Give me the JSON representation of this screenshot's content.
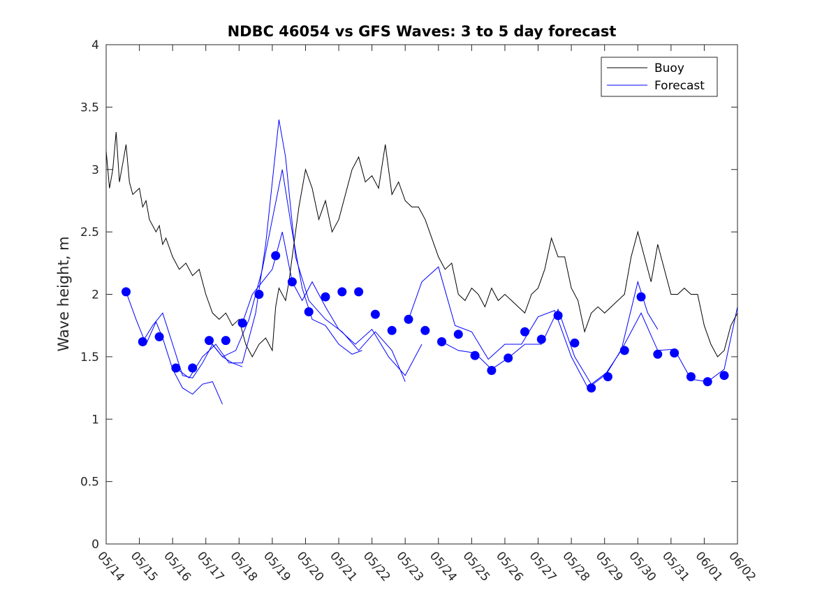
{
  "chart_data": {
    "type": "line",
    "title": "NDBC 46054 vs GFS Waves: 3 to 5 day forecast",
    "xlabel": "",
    "ylabel": "Wave height, m",
    "ylim": [
      0,
      4
    ],
    "yticks": [
      "0",
      "0.5",
      "1",
      "1.5",
      "2",
      "2.5",
      "3",
      "3.5",
      "4"
    ],
    "xlim": [
      0,
      19
    ],
    "xtick_labels": [
      "05/14",
      "05/15",
      "05/16",
      "05/17",
      "05/18",
      "05/19",
      "05/20",
      "05/21",
      "05/22",
      "05/23",
      "05/24",
      "05/25",
      "05/26",
      "05/27",
      "05/28",
      "05/29",
      "05/30",
      "05/31",
      "06/01",
      "06/02"
    ],
    "grid": false,
    "legend_position": "top-right",
    "colors": {
      "buoy": "#000000",
      "forecast": "#0000ff",
      "axes": "#262626"
    },
    "legend": [
      {
        "label": "Buoy",
        "color": "#000000"
      },
      {
        "label": "Forecast",
        "color": "#0000ff"
      }
    ],
    "series": [
      {
        "name": "Buoy",
        "x": [
          0,
          0.1,
          0.2,
          0.3,
          0.4,
          0.5,
          0.6,
          0.7,
          0.8,
          1.0,
          1.1,
          1.2,
          1.3,
          1.5,
          1.6,
          1.7,
          1.8,
          2.0,
          2.2,
          2.4,
          2.6,
          2.8,
          3.0,
          3.2,
          3.4,
          3.6,
          3.8,
          4.0,
          4.2,
          4.4,
          4.6,
          4.8,
          5.0,
          5.1,
          5.2,
          5.3,
          5.4,
          5.5,
          5.6,
          5.8,
          6.0,
          6.2,
          6.4,
          6.6,
          6.8,
          7.0,
          7.2,
          7.4,
          7.6,
          7.8,
          8.0,
          8.2,
          8.4,
          8.6,
          8.8,
          9.0,
          9.2,
          9.4,
          9.6,
          9.8,
          10.0,
          10.2,
          10.4,
          10.6,
          10.8,
          11.0,
          11.2,
          11.4,
          11.6,
          11.8,
          12.0,
          12.2,
          12.4,
          12.6,
          12.8,
          13.0,
          13.2,
          13.4,
          13.6,
          13.8,
          14.0,
          14.2,
          14.4,
          14.6,
          14.8,
          15.0,
          15.2,
          15.4,
          15.6,
          15.8,
          16.0,
          16.2,
          16.4,
          16.6,
          16.8,
          17.0,
          17.2,
          17.4,
          17.6,
          17.8,
          18.0,
          18.2,
          18.4,
          18.6,
          18.8,
          19.0
        ],
        "values": [
          3.15,
          2.85,
          3.0,
          3.3,
          2.9,
          3.05,
          3.2,
          2.9,
          2.8,
          2.85,
          2.7,
          2.75,
          2.6,
          2.5,
          2.55,
          2.4,
          2.45,
          2.3,
          2.2,
          2.25,
          2.15,
          2.2,
          2.0,
          1.85,
          1.8,
          1.85,
          1.75,
          1.8,
          1.6,
          1.5,
          1.6,
          1.65,
          1.55,
          1.9,
          2.05,
          2.0,
          1.95,
          2.1,
          2.3,
          2.7,
          3.0,
          2.85,
          2.6,
          2.75,
          2.5,
          2.6,
          2.8,
          3.0,
          3.1,
          2.9,
          2.95,
          2.85,
          3.2,
          2.8,
          2.9,
          2.75,
          2.7,
          2.7,
          2.6,
          2.45,
          2.3,
          2.2,
          2.25,
          2.0,
          1.95,
          2.05,
          2.0,
          1.9,
          2.05,
          1.95,
          2.0,
          1.95,
          1.9,
          1.85,
          2.0,
          2.05,
          2.2,
          2.45,
          2.3,
          2.3,
          2.05,
          1.95,
          1.7,
          1.85,
          1.9,
          1.85,
          1.9,
          1.95,
          2.0,
          2.3,
          2.5,
          2.3,
          2.1,
          2.4,
          2.2,
          2.0,
          2.0,
          2.05,
          2.0,
          2.0,
          1.75,
          1.6,
          1.5,
          1.55,
          1.75,
          1.85
        ]
      },
      {
        "name": "Forecast",
        "x": [
          0.6,
          1.1,
          1.6,
          2.1,
          2.6,
          3.1,
          3.6,
          4.1,
          4.6,
          5.1,
          5.6,
          6.1,
          6.6,
          7.1,
          7.6,
          8.1,
          8.6,
          9.1,
          9.6,
          10.1,
          10.6,
          11.1,
          11.6,
          12.1,
          12.6,
          13.1,
          13.6,
          14.1,
          14.6,
          15.1,
          15.6,
          16.1,
          16.6,
          17.1,
          17.6,
          18.1,
          18.6
        ],
        "values": [
          2.02,
          1.62,
          1.66,
          1.41,
          1.41,
          1.63,
          1.63,
          1.77,
          2.0,
          2.31,
          2.1,
          1.86,
          1.98,
          2.02,
          2.02,
          1.84,
          1.71,
          1.8,
          1.71,
          1.62,
          1.68,
          1.51,
          1.39,
          1.49,
          1.7,
          1.64,
          1.83,
          1.61,
          1.25,
          1.34,
          1.55,
          1.98,
          1.52,
          1.53,
          1.34,
          1.3,
          1.35
        ]
      }
    ],
    "forecast_runs": [
      {
        "x": [
          0.6,
          0.9,
          1.2,
          1.5,
          1.7,
          2.0,
          2.3,
          2.6,
          2.9,
          3.2,
          3.5
        ],
        "values": [
          2.02,
          1.8,
          1.6,
          1.78,
          1.65,
          1.4,
          1.25,
          1.2,
          1.28,
          1.3,
          1.12
        ]
      },
      {
        "x": [
          1.1,
          1.4,
          1.7,
          2.0,
          2.3,
          2.6,
          2.9,
          3.2,
          3.5,
          3.8,
          4.1
        ],
        "values": [
          1.62,
          1.75,
          1.85,
          1.6,
          1.35,
          1.33,
          1.45,
          1.6,
          1.5,
          1.45,
          1.42
        ]
      },
      {
        "x": [
          2.1,
          2.5,
          2.9,
          3.3,
          3.7,
          4.1,
          4.5,
          4.8,
          5.0,
          5.2,
          5.4,
          5.7,
          6.1,
          6.6,
          7.1,
          7.6,
          8.1,
          8.6,
          9.0
        ],
        "values": [
          1.41,
          1.33,
          1.5,
          1.6,
          1.45,
          1.45,
          1.85,
          2.4,
          2.9,
          3.4,
          3.1,
          2.3,
          1.95,
          1.8,
          1.7,
          1.55,
          1.7,
          1.55,
          1.3
        ]
      },
      {
        "x": [
          3.1,
          3.5,
          3.9,
          4.3,
          4.7,
          5.0,
          5.3,
          5.6,
          5.9,
          6.2,
          6.6,
          7.0,
          7.4,
          7.7
        ],
        "values": [
          1.63,
          1.5,
          1.55,
          1.8,
          2.2,
          2.6,
          3.0,
          2.5,
          2.05,
          1.8,
          1.75,
          1.6,
          1.52,
          1.55
        ]
      },
      {
        "x": [
          4.1,
          4.4,
          4.7,
          5.0,
          5.3,
          5.6,
          5.9,
          6.2,
          6.6,
          7.0,
          7.5,
          8.0,
          8.5,
          9.0,
          9.5
        ],
        "values": [
          1.77,
          2.0,
          2.1,
          2.2,
          2.5,
          2.1,
          1.95,
          2.1,
          1.9,
          1.72,
          1.6,
          1.72,
          1.5,
          1.35,
          1.6
        ]
      },
      {
        "x": [
          9.1,
          9.5,
          10.0,
          10.5,
          11.0,
          11.5,
          12.0,
          12.5,
          13.0,
          13.5,
          14.0,
          14.5,
          15.0,
          15.5,
          16.0,
          16.3,
          16.6
        ],
        "values": [
          1.8,
          2.1,
          2.22,
          1.75,
          1.7,
          1.48,
          1.6,
          1.6,
          1.82,
          1.87,
          1.5,
          1.25,
          1.35,
          1.55,
          2.1,
          1.85,
          1.72
        ]
      },
      {
        "x": [
          10.1,
          10.6,
          11.1,
          11.6,
          12.1,
          12.6,
          13.1,
          13.6,
          14.1,
          14.6,
          15.1,
          15.6,
          16.1,
          16.6,
          17.1,
          17.6,
          18.1,
          18.6,
          19.0
        ],
        "values": [
          1.62,
          1.55,
          1.53,
          1.4,
          1.49,
          1.6,
          1.6,
          1.88,
          1.5,
          1.28,
          1.38,
          1.6,
          1.85,
          1.55,
          1.56,
          1.32,
          1.3,
          1.4,
          1.9
        ]
      }
    ]
  }
}
